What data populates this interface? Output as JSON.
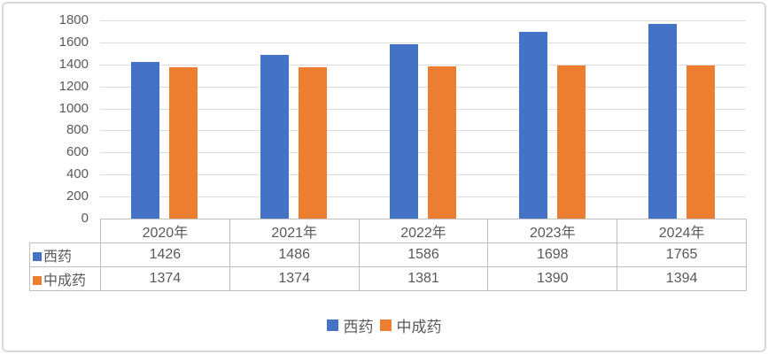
{
  "chart_data": {
    "type": "bar",
    "title": "",
    "categories": [
      "2020年",
      "2021年",
      "2022年",
      "2023年",
      "2024年"
    ],
    "series": [
      {
        "name": "西药",
        "color": "#4472C4",
        "values": [
          1426,
          1486,
          1586,
          1698,
          1765
        ]
      },
      {
        "name": "中成药",
        "color": "#ED7D31",
        "values": [
          1374,
          1374,
          1381,
          1390,
          1394
        ]
      }
    ],
    "yticks": [
      0,
      200,
      400,
      600,
      800,
      1000,
      1200,
      1400,
      1600,
      1800
    ],
    "ylim": [
      0,
      1800
    ],
    "grid": true,
    "legend_position": "bottom",
    "data_table_shown": true
  },
  "palette": {
    "text": "#595959",
    "grid": "#dcdcdc",
    "table_border": "#bfbfbf",
    "frame_border": "#d8d8d8"
  }
}
